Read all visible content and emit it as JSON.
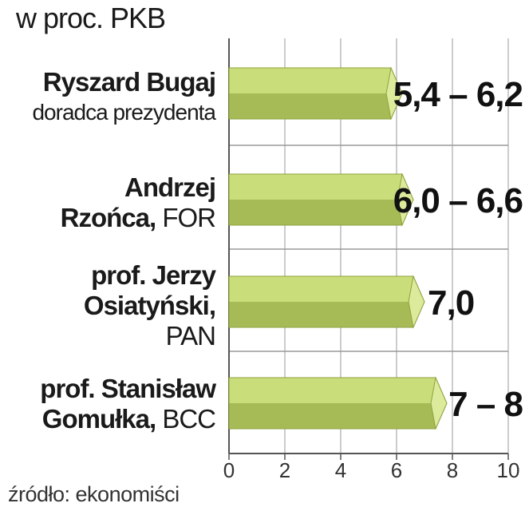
{
  "header": {
    "unit": "w proc. PKB"
  },
  "footer": {
    "source": "źródło:  ekonomiści"
  },
  "chart_data": {
    "type": "bar",
    "orientation": "horizontal",
    "title": "",
    "xlabel": "",
    "ylabel": "",
    "unit": "w proc. PKB",
    "xlim": [
      0,
      10
    ],
    "xticks": [
      "0",
      "2",
      "4",
      "6",
      "8",
      "10"
    ],
    "grid": true,
    "categories": [
      {
        "name_lines": [
          "Ryszard Bugaj"
        ],
        "sub": "doradca prezydenta",
        "sub_inline": false
      },
      {
        "name_lines": [
          "Andrzej",
          "Rzońca,"
        ],
        "sub": "FOR",
        "sub_inline": true
      },
      {
        "name_lines": [
          "prof. Jerzy",
          "Osiatyński,"
        ],
        "sub": "PAN",
        "sub_inline": false
      },
      {
        "name_lines": [
          "prof. Stanisław",
          "Gomułka,"
        ],
        "sub": "BCC",
        "sub_inline": true
      }
    ],
    "values": [
      6.2,
      6.6,
      7.0,
      7.8
    ],
    "ranges": [
      [
        5.4,
        6.2
      ],
      [
        6.0,
        6.6
      ],
      [
        7.0,
        7.0
      ],
      [
        7.0,
        8.0
      ]
    ],
    "value_labels": [
      "5,4 – 6,2",
      "6,0 – 6,6",
      "7,0",
      "7 – 8"
    ],
    "colors": {
      "bar_top": "#c9dd7a",
      "bar_bottom": "#a6bb55",
      "bar_edge": "#8ea23e",
      "tip_face": "#dcea9c",
      "grid": "#9a9a9a",
      "axis": "#555555"
    }
  }
}
